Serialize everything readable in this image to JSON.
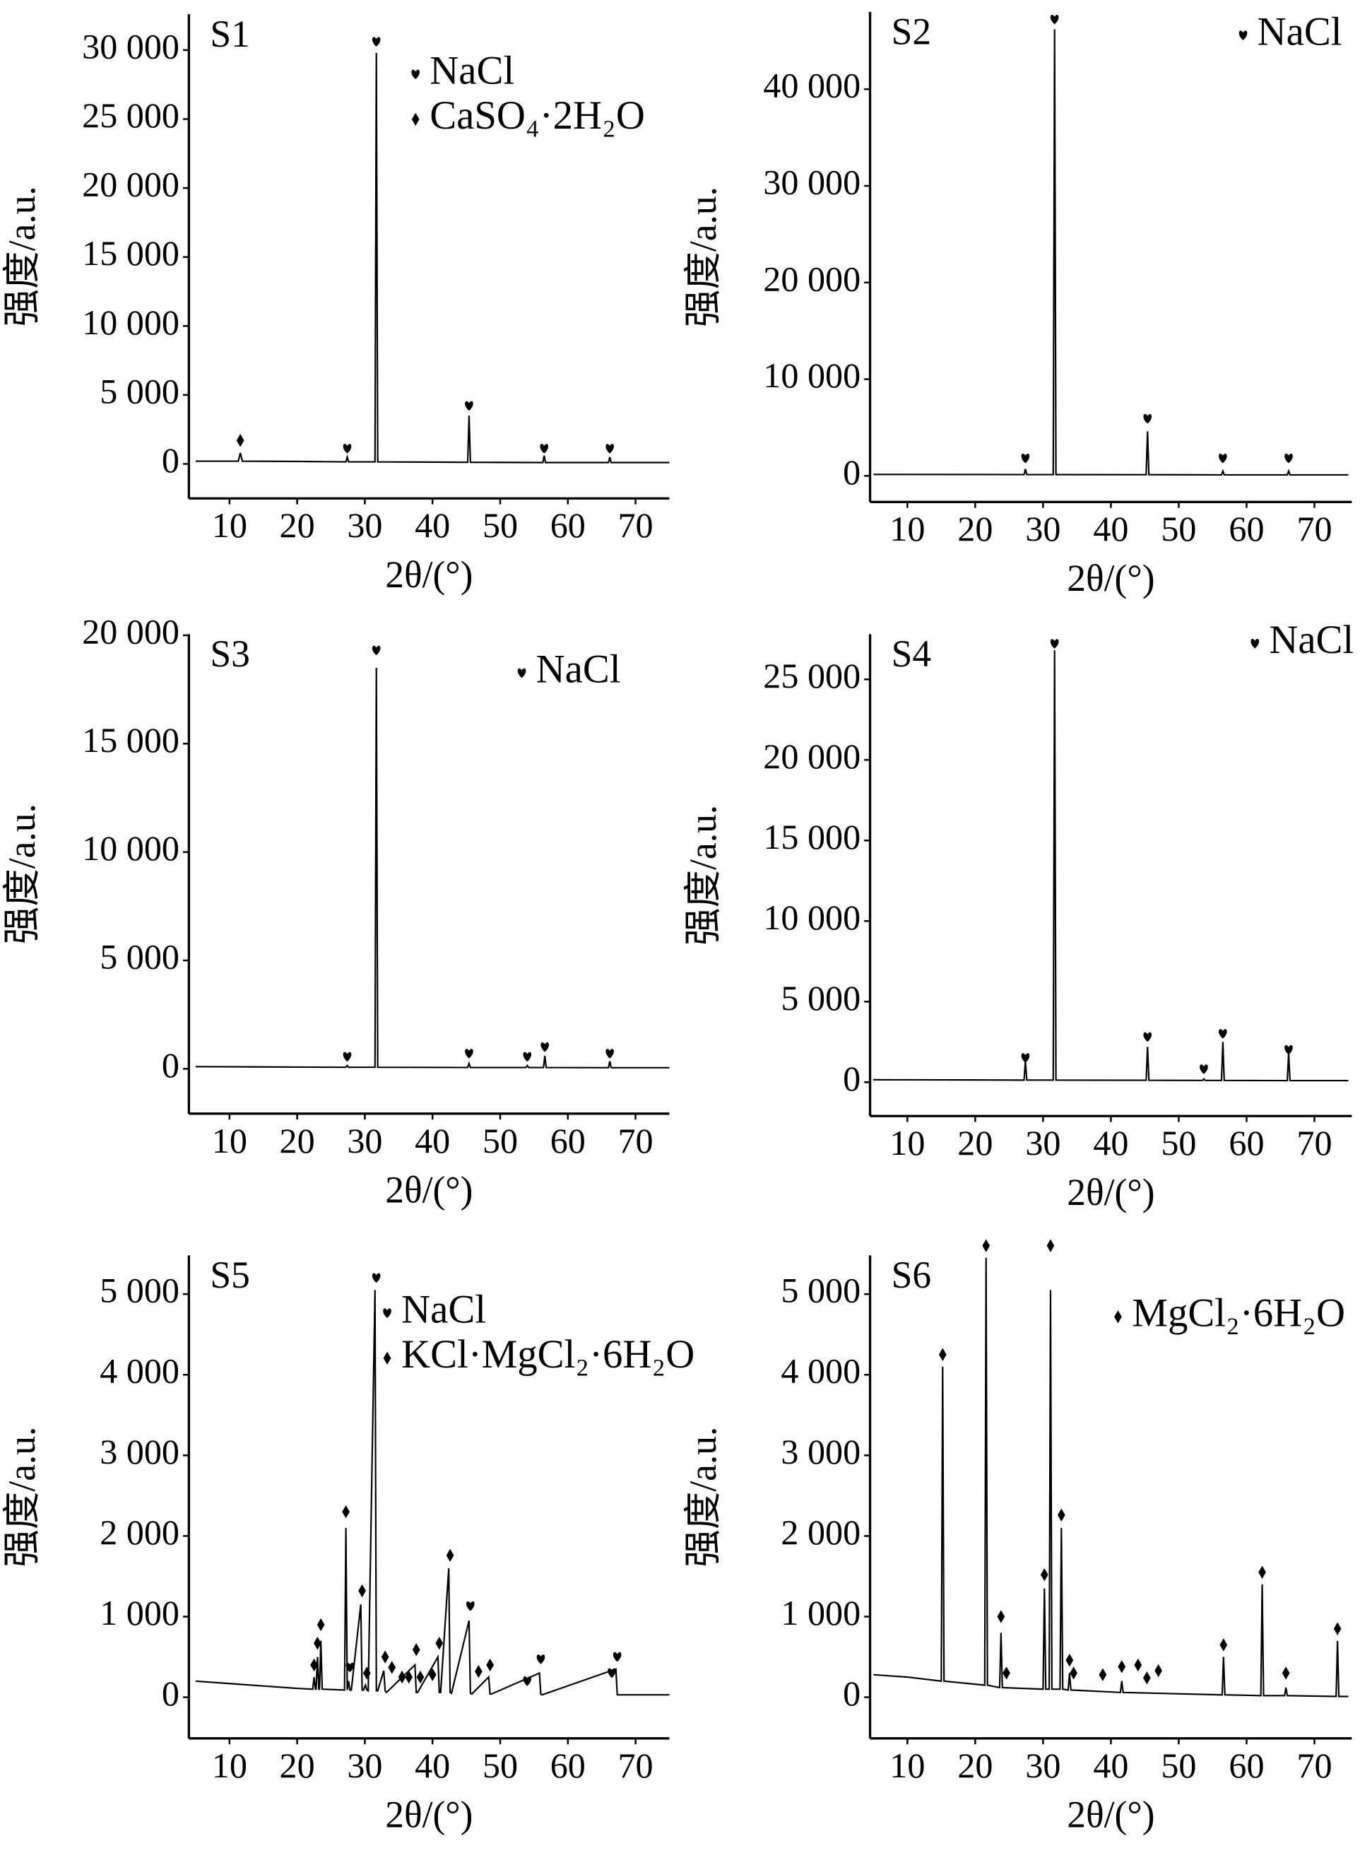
{
  "chart_data": [
    {
      "type": "line",
      "title": "S1",
      "xlabel": "2θ/(°)",
      "ylabel": "强度/a.u.",
      "color": "#000000",
      "xlim": [
        4,
        75
      ],
      "xticks": [
        10,
        20,
        30,
        40,
        50,
        60,
        70
      ],
      "ylim": [
        -2500,
        32600
      ],
      "yticks": [
        0,
        {
          "value": 5000,
          "label": "5 000"
        },
        {
          "value": 10000,
          "label": "10 000"
        },
        {
          "value": 15000,
          "label": "15 000"
        },
        {
          "value": 20000,
          "label": "20 000"
        },
        {
          "value": 25000,
          "label": "25 000"
        },
        {
          "value": 30000,
          "label": "30 000"
        }
      ],
      "series": [
        {
          "x": [
            5,
            11.3,
            11.6,
            11.9,
            20,
            27.2,
            27.4,
            27.6,
            31.5,
            31.7,
            31.9,
            45.2,
            45.4,
            45.6,
            56.3,
            56.5,
            56.7,
            66,
            66.2,
            66.4,
            75
          ],
          "values": [
            200,
            200,
            800,
            200,
            180,
            150,
            500,
            150,
            150,
            29800,
            150,
            120,
            3500,
            120,
            100,
            600,
            100,
            100,
            500,
            100,
            100
          ]
        }
      ],
      "phases": [
        {
          "name": "NaCl",
          "symbol": "heart",
          "x": [
            27.4,
            31.7,
            45.4,
            56.5,
            66.2
          ],
          "y": [
            1100,
            30600,
            4200,
            1100,
            1100
          ]
        },
        {
          "name": "CaSO₄·2H₂O",
          "symbol": "diamond",
          "x": [
            11.6
          ],
          "y": [
            1700
          ]
        }
      ]
    },
    {
      "type": "line",
      "title": "S2",
      "xlabel": "2θ/(°)",
      "ylabel": "强度/a.u.",
      "color": "#000000",
      "xlim": [
        4.5,
        75.5
      ],
      "xticks": [
        10,
        20,
        30,
        40,
        50,
        60,
        70
      ],
      "ylim": [
        -2700,
        48000
      ],
      "yticks": [
        0,
        {
          "value": 10000,
          "label": "10 000"
        },
        {
          "value": 20000,
          "label": "20 000"
        },
        {
          "value": 30000,
          "label": "30 000"
        },
        {
          "value": 40000,
          "label": "40 000"
        }
      ],
      "series": [
        {
          "x": [
            5,
            20,
            27.2,
            27.4,
            27.6,
            31.5,
            31.7,
            31.9,
            45.2,
            45.4,
            45.6,
            56.3,
            56.5,
            56.7,
            66,
            66.2,
            66.4,
            75
          ],
          "values": [
            150,
            140,
            130,
            700,
            130,
            130,
            46200,
            130,
            120,
            4600,
            120,
            100,
            500,
            100,
            100,
            500,
            100,
            100
          ]
        }
      ],
      "phases": [
        {
          "name": "NaCl",
          "symbol": "heart",
          "x": [
            27.4,
            31.7,
            45.4,
            56.5,
            66.2
          ],
          "y": [
            1800,
            47200,
            5900,
            1800,
            1800
          ]
        }
      ]
    },
    {
      "type": "line",
      "title": "S3",
      "xlabel": "2θ/(°)",
      "ylabel": "强度/a.u.",
      "color": "#000000",
      "xlim": [
        4,
        75
      ],
      "xticks": [
        10,
        20,
        30,
        40,
        50,
        60,
        70
      ],
      "ylim": [
        -2070,
        20050
      ],
      "yticks": [
        0,
        {
          "value": 5000,
          "label": "5 000"
        },
        {
          "value": 10000,
          "label": "10 000"
        },
        {
          "value": 15000,
          "label": "15 000"
        },
        {
          "value": 20000,
          "label": "20 000"
        }
      ],
      "series": [
        {
          "x": [
            5,
            20,
            27.2,
            27.4,
            27.6,
            31.5,
            31.7,
            31.9,
            45.2,
            45.4,
            45.6,
            53.8,
            54,
            54.2,
            56.4,
            56.6,
            56.8,
            66,
            66.2,
            66.4,
            75
          ],
          "values": [
            100,
            80,
            70,
            150,
            70,
            70,
            18500,
            70,
            60,
            250,
            60,
            60,
            150,
            60,
            60,
            600,
            60,
            50,
            350,
            50,
            50
          ]
        }
      ],
      "phases": [
        {
          "name": "NaCl",
          "symbol": "heart",
          "x": [
            27.4,
            31.7,
            45.4,
            54,
            56.6,
            66.2
          ],
          "y": [
            550,
            19300,
            700,
            550,
            1000,
            700
          ]
        }
      ]
    },
    {
      "type": "line",
      "title": "S4",
      "xlabel": "2θ/(°)",
      "ylabel": "强度/a.u.",
      "color": "#000000",
      "xlim": [
        4.5,
        75.5
      ],
      "xticks": [
        10,
        20,
        30,
        40,
        50,
        60,
        70
      ],
      "ylim": [
        -2100,
        27800
      ],
      "yticks": [
        0,
        {
          "value": 5000,
          "label": "5 000"
        },
        {
          "value": 10000,
          "label": "10 000"
        },
        {
          "value": 15000,
          "label": "15 000"
        },
        {
          "value": 20000,
          "label": "20 000"
        },
        {
          "value": 25000,
          "label": "25 000"
        }
      ],
      "series": [
        {
          "x": [
            5,
            20,
            27.2,
            27.4,
            27.6,
            31.5,
            31.7,
            31.9,
            45.2,
            45.4,
            45.6,
            53.5,
            53.7,
            53.9,
            56.3,
            56.5,
            56.7,
            66,
            66.2,
            66.4,
            75
          ],
          "values": [
            150,
            140,
            130,
            1300,
            130,
            130,
            26800,
            130,
            120,
            2200,
            120,
            110,
            200,
            110,
            110,
            2500,
            110,
            100,
            1800,
            100,
            100
          ]
        }
      ],
      "phases": [
        {
          "name": "NaCl",
          "symbol": "heart",
          "x": [
            27.4,
            31.7,
            45.4,
            53.7,
            56.5,
            66.2
          ],
          "y": [
            1500,
            27200,
            2800,
            800,
            3000,
            2000
          ]
        }
      ]
    },
    {
      "type": "line",
      "title": "S5",
      "xlabel": "2θ/(°)",
      "ylabel": "强度/a.u.",
      "color": "#000000",
      "xlim": [
        4,
        75
      ],
      "xticks": [
        10,
        20,
        30,
        40,
        50,
        60,
        70
      ],
      "ylim": [
        -510,
        5480
      ],
      "yticks": [
        0,
        {
          "value": 1000,
          "label": "1 000"
        },
        {
          "value": 2000,
          "label": "2 000"
        },
        {
          "value": 3000,
          "label": "3 000"
        },
        {
          "value": 4000,
          "label": "4 000"
        },
        {
          "value": 5000,
          "label": "5 000"
        }
      ],
      "series": [
        {
          "x": [
            5,
            10,
            15,
            20,
            22.3,
            22.5,
            22.7,
            22.8,
            23,
            23.2,
            23.3,
            23.5,
            23.7,
            27,
            27.2,
            27.4,
            27.6,
            27.8,
            28,
            29.4,
            29.6,
            29.8,
            30.1,
            30.3,
            30.5,
            31.5,
            31.7,
            31.9,
            32.8,
            33,
            33.2,
            37.4,
            37.6,
            37.8,
            40.8,
            41,
            41.2,
            42.4,
            42.6,
            42.8,
            45.4,
            45.6,
            45.8,
            48.3,
            48.5,
            48.7,
            55.8,
            56,
            56.2,
            67.1,
            67.3,
            67.5,
            75
          ],
          "values": [
            200,
            170,
            140,
            110,
            100,
            250,
            100,
            100,
            500,
            100,
            100,
            700,
            100,
            90,
            2100,
            90,
            200,
            90,
            90,
            1150,
            90,
            90,
            150,
            90,
            80,
            5050,
            80,
            80,
            330,
            80,
            60,
            400,
            60,
            60,
            500,
            60,
            60,
            1600,
            60,
            50,
            950,
            50,
            40,
            250,
            40,
            40,
            300,
            40,
            30,
            350,
            30,
            30,
            30
          ]
        }
      ],
      "phases": [
        {
          "name": "NaCl",
          "symbol": "heart",
          "x": [
            27.8,
            31.7,
            45.6,
            54,
            56,
            66.5,
            67.3
          ],
          "y": [
            370,
            5200,
            1130,
            200,
            470,
            300,
            500
          ]
        },
        {
          "name": "KCl·MgCl₂·6H₂O",
          "symbol": "diamond",
          "x": [
            22.5,
            23,
            23.5,
            27.2,
            29.6,
            30.3,
            33,
            34,
            35.5,
            36.5,
            37.6,
            38.2,
            40,
            41,
            42.6,
            46.8,
            48.5
          ],
          "y": [
            400,
            670,
            900,
            2300,
            1320,
            300,
            500,
            370,
            250,
            250,
            590,
            250,
            280,
            670,
            1760,
            320,
            400
          ]
        }
      ]
    },
    {
      "type": "line",
      "title": "S6",
      "xlabel": "2θ/(°)",
      "ylabel": "强度/a.u.",
      "color": "#000000",
      "xlim": [
        4.5,
        75.5
      ],
      "xticks": [
        10,
        20,
        30,
        40,
        50,
        60,
        70
      ],
      "ylim": [
        -510,
        5480
      ],
      "yticks": [
        0,
        {
          "value": 1000,
          "label": "1 000"
        },
        {
          "value": 2000,
          "label": "2 000"
        },
        {
          "value": 3000,
          "label": "3 000"
        },
        {
          "value": 4000,
          "label": "4 000"
        },
        {
          "value": 5000,
          "label": "5 000"
        }
      ],
      "series": [
        {
          "x": [
            5,
            10,
            15,
            15.2,
            15.4,
            21.4,
            21.6,
            21.8,
            23.6,
            23.8,
            24,
            30,
            30.2,
            30.4,
            30.9,
            31.1,
            31.3,
            32.5,
            32.7,
            32.9,
            33.7,
            33.9,
            34.1,
            41.4,
            41.6,
            41.8,
            56.4,
            56.6,
            56.8,
            62.1,
            62.3,
            62.5,
            65.6,
            65.8,
            66,
            73.2,
            73.4,
            73.6,
            75
          ],
          "values": [
            280,
            250,
            200,
            4100,
            200,
            150,
            5450,
            150,
            120,
            800,
            120,
            100,
            1350,
            100,
            100,
            5050,
            100,
            100,
            2100,
            100,
            90,
            300,
            90,
            60,
            200,
            60,
            30,
            500,
            30,
            20,
            1400,
            20,
            20,
            120,
            20,
            10,
            700,
            10,
            10
          ]
        }
      ],
      "phases": [
        {
          "name": "MgCl₂·6H₂O",
          "symbol": "diamond",
          "x": [
            15.2,
            21.6,
            23.8,
            24.6,
            30.2,
            31.1,
            32.7,
            33.9,
            34.5,
            38.8,
            41.6,
            44,
            45.3,
            47,
            56.6,
            62.3,
            65.8,
            73.4
          ],
          "y": [
            4250,
            5600,
            1000,
            300,
            1520,
            5600,
            2260,
            460,
            300,
            280,
            380,
            400,
            240,
            330,
            650,
            1550,
            300,
            850
          ]
        }
      ]
    }
  ]
}
